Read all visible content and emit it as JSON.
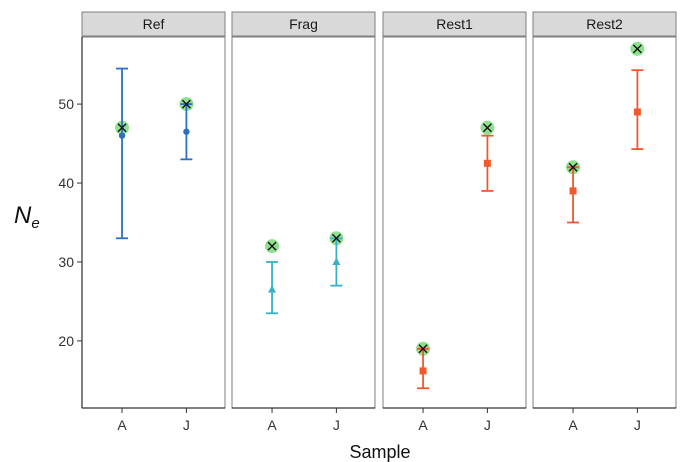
{
  "chart_data": {
    "type": "scatter",
    "xlabel": "Sample",
    "ylabel_main": "N",
    "ylabel_sub": "e",
    "ylim": [
      11.5,
      58.5
    ],
    "yticks": [
      20,
      30,
      40,
      50
    ],
    "categories": [
      "A",
      "J"
    ],
    "grid": false,
    "panels": [
      {
        "name": "Ref",
        "color": "#2f6fc0",
        "marker": "circle",
        "points": [
          {
            "x": "A",
            "y": 46.0,
            "lower": 33.0,
            "upper": 54.5,
            "reference": 47.0
          },
          {
            "x": "J",
            "y": 46.5,
            "lower": 43.0,
            "upper": 50.0,
            "reference": 50.0
          }
        ]
      },
      {
        "name": "Frag",
        "color": "#35b2c9",
        "marker": "triangle",
        "points": [
          {
            "x": "A",
            "y": 26.5,
            "lower": 23.5,
            "upper": 30.0,
            "reference": 32.0
          },
          {
            "x": "J",
            "y": 30.0,
            "lower": 27.0,
            "upper": 33.0,
            "reference": 33.0
          }
        ]
      },
      {
        "name": "Rest1",
        "color": "#f0582e",
        "marker": "square",
        "points": [
          {
            "x": "A",
            "y": 16.2,
            "lower": 14.0,
            "upper": 19.0,
            "reference": 19.0
          },
          {
            "x": "J",
            "y": 42.5,
            "lower": 39.0,
            "upper": 46.0,
            "reference": 47.0
          }
        ]
      },
      {
        "name": "Rest2",
        "color": "#f0582e",
        "marker": "square",
        "points": [
          {
            "x": "A",
            "y": 39.0,
            "lower": 35.0,
            "upper": 42.0,
            "reference": 42.0
          },
          {
            "x": "J",
            "y": 49.0,
            "lower": 44.3,
            "upper": 54.3,
            "reference": 57.0
          }
        ]
      }
    ],
    "reference_marker": {
      "fill": "#8fe08f",
      "cross": "#111111"
    }
  }
}
